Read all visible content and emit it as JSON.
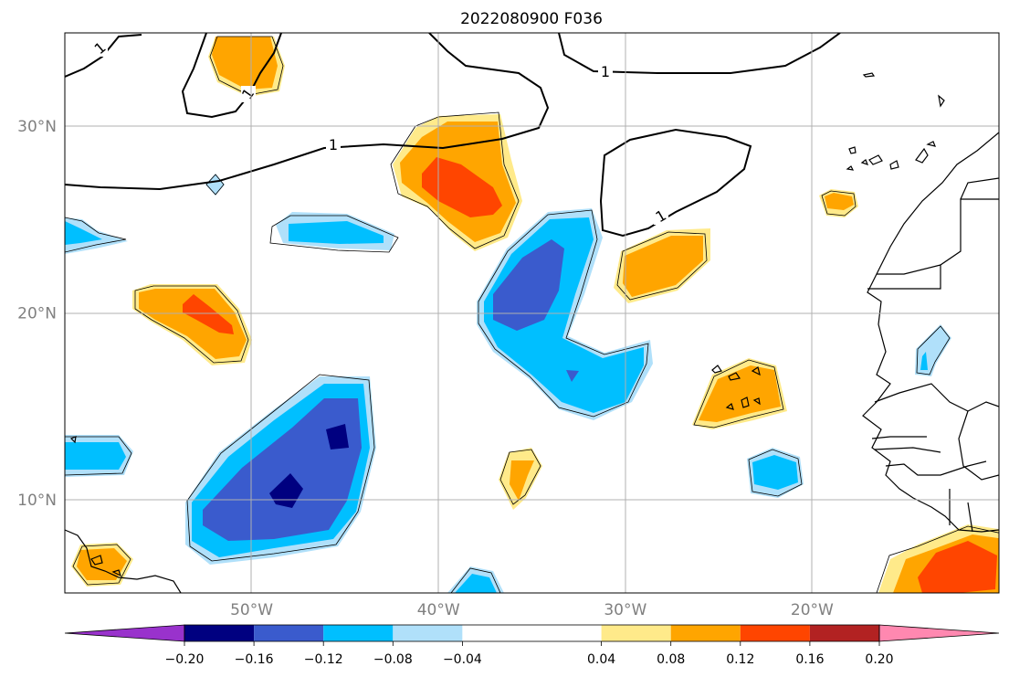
{
  "title": "2022080900 F036",
  "map": {
    "lat_range": [
      5,
      35
    ],
    "lon_range": [
      -60,
      -10
    ],
    "lat_ticks": [
      {
        "value": 30,
        "label": "30°N"
      },
      {
        "value": 20,
        "label": "20°N"
      },
      {
        "value": 10,
        "label": "10°N"
      }
    ],
    "lon_ticks": [
      {
        "value": -50,
        "label": "50°W"
      },
      {
        "value": -40,
        "label": "40°W"
      },
      {
        "value": -30,
        "label": "30°W"
      },
      {
        "value": -20,
        "label": "20°W"
      }
    ],
    "grid": true,
    "contour_label": "1"
  },
  "colorbar": {
    "orientation": "horizontal",
    "extend": "both",
    "levels": [
      -0.24,
      -0.2,
      -0.16,
      -0.12,
      -0.08,
      -0.04,
      0.04,
      0.08,
      0.12,
      0.16,
      0.2,
      0.24
    ],
    "colors": [
      "#9932cc",
      "#000080",
      "#3a5bcd",
      "#00bfff",
      "#b0e0fa",
      "#ffffff",
      "#ffea8a",
      "#ffa500",
      "#ff4500",
      "#b22222",
      "#ff88b0"
    ],
    "tick_labels": [
      "−0.20",
      "−0.16",
      "−0.12",
      "−0.08",
      "−0.04",
      "0.04",
      "0.08",
      "0.12",
      "0.16",
      "0.20"
    ]
  }
}
